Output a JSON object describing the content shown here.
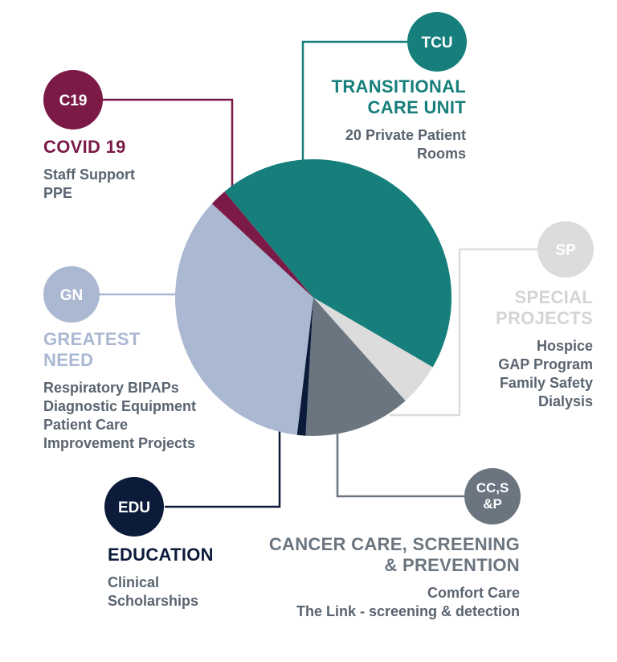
{
  "chart_data": {
    "type": "pie",
    "slices": [
      {
        "key": "tcu",
        "abbr": "TCU",
        "label": "TRANSITIONAL CARE UNIT",
        "value": 44.5,
        "color": "#167f7b"
      },
      {
        "key": "sp",
        "abbr": "SP",
        "label": "SPECIAL PROJECTS",
        "value": 5,
        "color": "#dcdcdc"
      },
      {
        "key": "ccsp",
        "abbr": "CC,S &P",
        "label": "CANCER CARE, SCREENING & PREVENTION",
        "value": 12.5,
        "color": "#6a7580"
      },
      {
        "key": "edu",
        "abbr": "EDU",
        "label": "EDUCATION",
        "value": 1,
        "color": "#0c1b3a"
      },
      {
        "key": "gn",
        "abbr": "GN",
        "label": "GREATEST NEED",
        "value": 35,
        "color": "#aab8d2"
      },
      {
        "key": "c19",
        "abbr": "C19",
        "label": "COVID 19",
        "value": 2,
        "color": "#7c1a47"
      }
    ]
  },
  "badges": {
    "tcu": "TCU",
    "sp": "SP",
    "ccsp_line1": "CC,S",
    "ccsp_line2": "&P",
    "edu": "EDU",
    "gn": "GN",
    "c19": "C19"
  },
  "tcu": {
    "title_line1": "TRANSITIONAL",
    "title_line2": "CARE UNIT",
    "items": [
      "20 Private Patient",
      "Rooms"
    ],
    "color": "#167f7b"
  },
  "sp": {
    "title_line1": "SPECIAL",
    "title_line2": "PROJECTS",
    "items": [
      "Hospice",
      "GAP Program",
      "Family Safety",
      "Dialysis"
    ],
    "color": "#dcdcdc"
  },
  "ccsp": {
    "title_line1": "CANCER CARE, SCREENING",
    "title_line2": "& PREVENTION",
    "items": [
      "Comfort Care",
      "The Link - screening & detection"
    ],
    "color": "#6a7580"
  },
  "edu": {
    "title_line1": "EDUCATION",
    "items": [
      "Clinical",
      "Scholarships"
    ],
    "color": "#0c1b3a"
  },
  "gn": {
    "title_line1": "GREATEST",
    "title_line2": "NEED",
    "items": [
      "Respiratory BIPAPs",
      "Diagnostic Equipment",
      "Patient Care",
      "Improvement Projects"
    ],
    "color": "#aab8d2"
  },
  "c19": {
    "title_line1": "COVID 19",
    "items": [
      "Staff Support",
      "PPE"
    ],
    "color": "#7c1a47"
  }
}
